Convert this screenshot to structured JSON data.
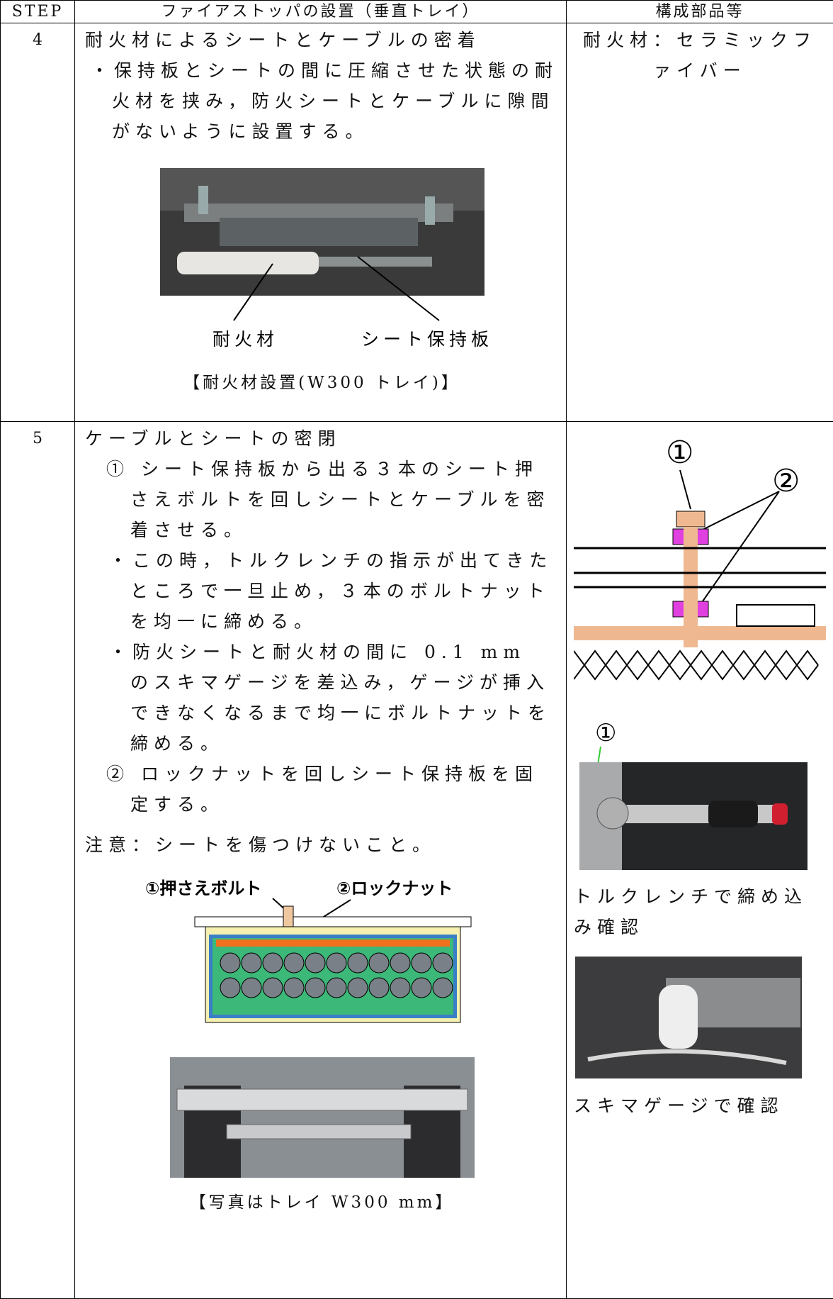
{
  "table": {
    "header": [
      "STEP",
      "ファイアストッパの設置（垂直トレイ）",
      "構成部品等"
    ],
    "rows": [
      {
        "step": "4",
        "heading": "耐火材によるシートとケーブルの密着",
        "lines": [
          "・保持板とシートの間に圧縮させた状態の耐火材を挟み，防火シートとケーブルに隙間がないように設置する。"
        ],
        "figure_labels": [
          "耐火材",
          "シート保持板"
        ],
        "caption": "【耐火材設置(W300 トレイ)】",
        "parts": "耐火材：セラミックファイバー"
      },
      {
        "step": "5",
        "heading": "ケーブルとシートの密閉",
        "items": [
          {
            "text": "① シート保持板から出る３本のシート押さえボルトを回しシートとケーブルを密着させる。",
            "subitems": [
              "・この時，トルクレンチの指示が出てきたところで一旦止め，３本のボルトナットを均一に締める。",
              "・防火シートと耐火材の間に 0.1 mm のスキマゲージを差込み，ゲージが挿入できなくなるまで均一にボルトナットを締める。"
            ]
          },
          {
            "text": "② ロックナットを回しシート保持板を固定する。",
            "subitems": []
          }
        ],
        "note": "注意：シートを傷つけないこと。",
        "diagram_labels": [
          "①押さえボルト",
          "②ロックナット"
        ],
        "caption": "【写真はトレイ W300 mm】",
        "parts_figure_labels": [
          "①",
          "②"
        ],
        "photo1_label": "①",
        "photo1_caption": "トルクレンチで締め込み確認",
        "photo2_caption": "スキマゲージで確認"
      }
    ]
  }
}
